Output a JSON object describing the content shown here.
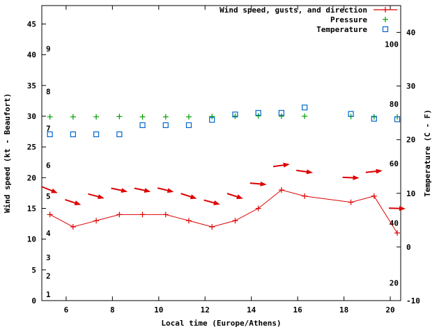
{
  "colors": {
    "background": "#ffffff",
    "axis": "#000000",
    "wind": "#dd0000",
    "pressure": "#00a000",
    "temperature": "#0066cc"
  },
  "chart_data": {
    "type": "line",
    "title": "",
    "xlabel": "Local time (Europe/Athens)",
    "ylabel": "Wind speed (kt - Beaufort)",
    "y2label": "Temperature (C - F)",
    "legend_position": "top-right-inside",
    "grid": false,
    "xlim": [
      4.95,
      20.45
    ],
    "x_ticks": [
      6,
      8,
      10,
      12,
      14,
      16,
      18,
      20
    ],
    "ylim_left": [
      0,
      48
    ],
    "y_ticks_left": [
      0,
      5,
      10,
      15,
      20,
      25,
      30,
      35,
      40,
      45
    ],
    "ylim_right": [
      -10,
      45
    ],
    "y_ticks_right": [
      -10,
      0,
      10,
      20,
      30,
      40
    ],
    "beaufort_scale_labels": [
      {
        "label": "1",
        "kt": 1
      },
      {
        "label": "2",
        "kt": 4
      },
      {
        "label": "3",
        "kt": 7
      },
      {
        "label": "4",
        "kt": 11
      },
      {
        "label": "5",
        "kt": 17
      },
      {
        "label": "6",
        "kt": 22
      },
      {
        "label": "7",
        "kt": 28
      },
      {
        "label": "8",
        "kt": 34
      },
      {
        "label": "9",
        "kt": 41
      }
    ],
    "fahrenheit_scale_labels": [
      {
        "label": "20",
        "f": 20
      },
      {
        "label": "40",
        "f": 40
      },
      {
        "label": "60",
        "f": 60
      },
      {
        "label": "80",
        "f": 80
      },
      {
        "label": "100",
        "f": 100
      }
    ],
    "x": [
      5.3,
      6.3,
      7.3,
      8.3,
      9.3,
      10.3,
      11.3,
      12.3,
      13.3,
      14.3,
      15.3,
      16.3,
      18.3,
      19.3,
      20.3
    ],
    "series": [
      {
        "name": "Wind speed, gusts, and direction",
        "type": "line+plus",
        "axis": "left",
        "color": "#dd0000",
        "values": [
          14,
          12,
          13,
          14,
          14,
          14,
          13,
          12,
          13,
          15,
          18,
          17,
          16,
          17,
          11
        ]
      },
      {
        "name": "Wind gusts with direction arrows",
        "type": "arrows",
        "axis": "left",
        "color": "#dd0000",
        "values": [
          18,
          16,
          17,
          18,
          18,
          18,
          17,
          16,
          17,
          19,
          22,
          21,
          20,
          21,
          15
        ],
        "angles_deg": [
          22,
          18,
          15,
          12,
          12,
          14,
          18,
          15,
          18,
          5,
          -8,
          8,
          2,
          -6,
          2
        ]
      },
      {
        "name": "Pressure",
        "type": "plus",
        "axis": "left",
        "color": "#00a000",
        "values": [
          29.9,
          29.9,
          29.9,
          29.95,
          29.9,
          29.9,
          29.9,
          29.95,
          30.0,
          30.05,
          30.0,
          30.0,
          29.95,
          29.9,
          29.9
        ]
      },
      {
        "name": "Temperature",
        "type": "square",
        "axis": "right",
        "color": "#0066cc",
        "values": [
          21.0,
          21.0,
          21.0,
          21.0,
          22.7,
          22.7,
          22.7,
          23.7,
          24.7,
          25.0,
          25.0,
          26.0,
          24.8,
          23.9,
          23.8
        ]
      }
    ],
    "legend": [
      {
        "label": "Wind speed, gusts, and direction",
        "marker": "line-plus",
        "color": "#dd0000"
      },
      {
        "label": "Pressure",
        "marker": "plus",
        "color": "#00a000"
      },
      {
        "label": "Temperature",
        "marker": "square",
        "color": "#0066cc"
      }
    ]
  }
}
